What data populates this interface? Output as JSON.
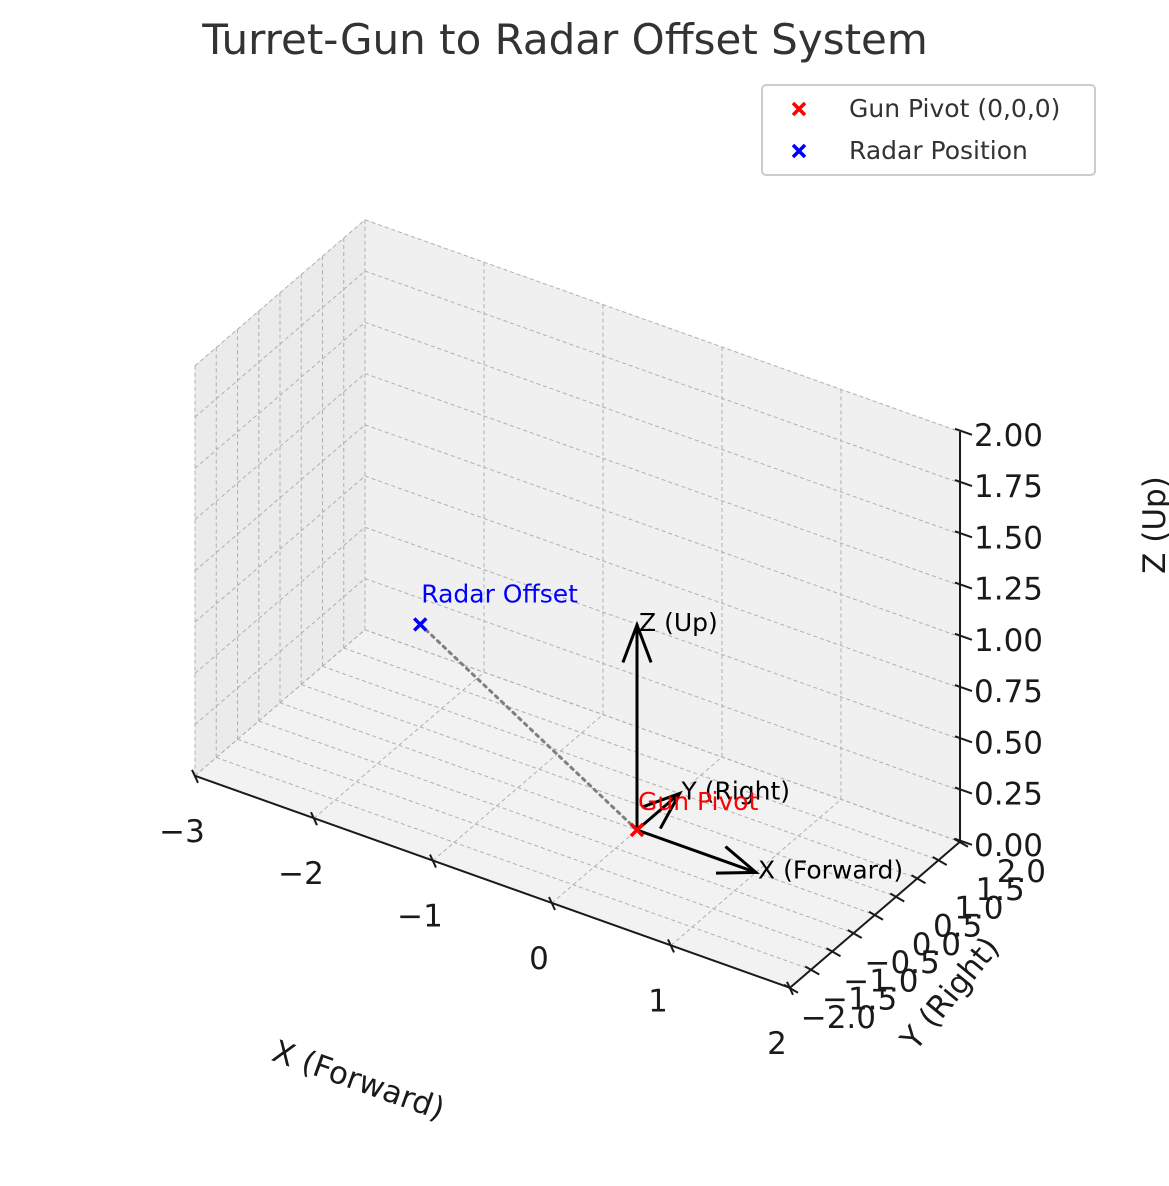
{
  "chart_data": {
    "type": "scatter",
    "projection": "3d",
    "title": "Turret-Gun to Radar Offset System",
    "xlabel": "X (Forward)",
    "ylabel": "Y (Right)",
    "zlabel": "Z (Up)",
    "xlim": [
      -3,
      2
    ],
    "ylim": [
      -2,
      2
    ],
    "zlim": [
      0,
      2
    ],
    "x_ticks": [
      "−3",
      "−2",
      "−1",
      "0",
      "1",
      "2"
    ],
    "y_ticks": [
      "−2.0",
      "−1.5",
      "−1.0",
      "−0.5",
      "0.0",
      "0.5",
      "1.0",
      "1.5",
      "2.0"
    ],
    "z_ticks": [
      "0.00",
      "0.25",
      "0.50",
      "0.75",
      "1.00",
      "1.25",
      "1.50",
      "1.75",
      "2.00"
    ],
    "grid": true,
    "legend_position": "top-right",
    "series": [
      {
        "name": "Gun Pivot (0,0,0)",
        "color": "#ff0000",
        "marker": "x",
        "points": [
          [
            0,
            0,
            0
          ]
        ]
      },
      {
        "name": "Radar Position",
        "color": "#0000ff",
        "marker": "x",
        "points": [
          [
            -2,
            0.5,
            0.5
          ]
        ]
      }
    ],
    "annotations": [
      {
        "text": "Gun Pivot",
        "color": "#ff0000",
        "at": [
          0,
          0,
          0
        ]
      },
      {
        "text": "Radar Offset",
        "color": "#0000ff",
        "at": [
          -2,
          0.5,
          0.5
        ]
      }
    ],
    "offset_line": {
      "from": [
        0,
        0,
        0
      ],
      "to": [
        -2,
        0.5,
        0.5
      ],
      "style": "dotted",
      "color": "#808080"
    },
    "axis_arrows": [
      {
        "label": "X (Forward)",
        "vector": [
          1,
          0,
          0
        ],
        "color": "#000000"
      },
      {
        "label": "Y (Right)",
        "vector": [
          0,
          1,
          0
        ],
        "color": "#000000"
      },
      {
        "label": "Z (Up)",
        "vector": [
          0,
          0,
          1
        ],
        "color": "#000000"
      }
    ]
  }
}
